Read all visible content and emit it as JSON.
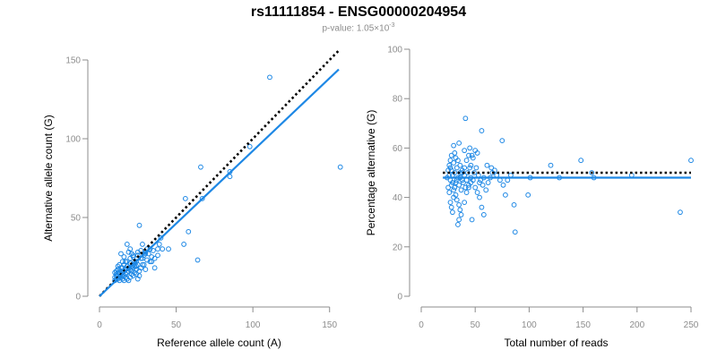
{
  "header": {
    "title": "rs11111854 - ENSG00000204954",
    "pvalue_text": "p-value: 1.05×10",
    "pvalue_exponent": "-3"
  },
  "colors": {
    "point": "#1e88e5",
    "fit_line": "#1e88e5",
    "reference_line": "#000000",
    "axis": "#8c8c8c"
  },
  "chart_data": [
    {
      "type": "scatter",
      "xlabel": "Reference allele count (A)",
      "ylabel": "Alternative allele count (G)",
      "xlim": [
        0,
        156
      ],
      "ylim": [
        0,
        150
      ],
      "xticks": [
        0,
        50,
        100,
        150
      ],
      "yticks": [
        0,
        50,
        100,
        150
      ],
      "grid": false,
      "lines": [
        {
          "kind": "reference",
          "style": "dotted",
          "x": [
            0,
            156
          ],
          "y": [
            0,
            156
          ]
        },
        {
          "kind": "fit",
          "style": "solid",
          "x": [
            0,
            156
          ],
          "y": [
            0,
            144
          ]
        }
      ],
      "points": [
        [
          111,
          139
        ],
        [
          157,
          82
        ],
        [
          98,
          95
        ],
        [
          85,
          79
        ],
        [
          85,
          76
        ],
        [
          66,
          82
        ],
        [
          67,
          62
        ],
        [
          56,
          62
        ],
        [
          58,
          41
        ],
        [
          64,
          23
        ],
        [
          55,
          33
        ],
        [
          40,
          37
        ],
        [
          39,
          33
        ],
        [
          38,
          30
        ],
        [
          41,
          30
        ],
        [
          35,
          29
        ],
        [
          34,
          22
        ],
        [
          33,
          22
        ],
        [
          36,
          18
        ],
        [
          28,
          33
        ],
        [
          26,
          45
        ],
        [
          30,
          27
        ],
        [
          31,
          23
        ],
        [
          29,
          20
        ],
        [
          27,
          24
        ],
        [
          25,
          28
        ],
        [
          24,
          22
        ],
        [
          23,
          19
        ],
        [
          22,
          25
        ],
        [
          21,
          27
        ],
        [
          20,
          30
        ],
        [
          19,
          28
        ],
        [
          18,
          33
        ],
        [
          17,
          22
        ],
        [
          16,
          25
        ],
        [
          16,
          20
        ],
        [
          15,
          18
        ],
        [
          15,
          22
        ],
        [
          14,
          27
        ],
        [
          14,
          18
        ],
        [
          13,
          20
        ],
        [
          13,
          15
        ],
        [
          12,
          17
        ],
        [
          12,
          19
        ],
        [
          12,
          13
        ],
        [
          11,
          16
        ],
        [
          11,
          14
        ],
        [
          10,
          12
        ],
        [
          10,
          15
        ],
        [
          10,
          10
        ],
        [
          11,
          11
        ],
        [
          12,
          11
        ],
        [
          13,
          12
        ],
        [
          14,
          12
        ],
        [
          15,
          11
        ],
        [
          16,
          13
        ],
        [
          17,
          14
        ],
        [
          18,
          11
        ],
        [
          19,
          10
        ],
        [
          20,
          12
        ],
        [
          21,
          14
        ],
        [
          22,
          13
        ],
        [
          23,
          15
        ],
        [
          24,
          14
        ],
        [
          25,
          11
        ],
        [
          26,
          13
        ],
        [
          17,
          17
        ],
        [
          18,
          19
        ],
        [
          19,
          18
        ],
        [
          20,
          21
        ],
        [
          21,
          19
        ],
        [
          22,
          20
        ],
        [
          23,
          22
        ],
        [
          24,
          17
        ],
        [
          26,
          16
        ],
        [
          27,
          18
        ],
        [
          28,
          20
        ],
        [
          30,
          17
        ],
        [
          11,
          13
        ],
        [
          12,
          15
        ],
        [
          13,
          14
        ],
        [
          14,
          16
        ],
        [
          15,
          15
        ],
        [
          16,
          16
        ],
        [
          17,
          12
        ],
        [
          18,
          15
        ],
        [
          19,
          16
        ],
        [
          20,
          17
        ],
        [
          21,
          16
        ],
        [
          22,
          18
        ],
        [
          24,
          19
        ],
        [
          25,
          20
        ],
        [
          28,
          24
        ],
        [
          29,
          26
        ],
        [
          30,
          28
        ],
        [
          32,
          27
        ],
        [
          33,
          30
        ],
        [
          34,
          25
        ],
        [
          36,
          24
        ],
        [
          38,
          26
        ],
        [
          45,
          30
        ],
        [
          16,
          10
        ],
        [
          13,
          10
        ],
        [
          15,
          13
        ],
        [
          18,
          22
        ],
        [
          20,
          24
        ],
        [
          22,
          26
        ],
        [
          25,
          26
        ],
        [
          27,
          29
        ],
        [
          31,
          30
        ]
      ]
    },
    {
      "type": "scatter",
      "xlabel": "Total number of reads",
      "ylabel": "Percentage alternative (G)",
      "xlim": [
        0,
        250
      ],
      "ylim": [
        0,
        100
      ],
      "xticks": [
        0,
        50,
        100,
        150,
        200,
        250
      ],
      "yticks": [
        0,
        20,
        40,
        60,
        80,
        100
      ],
      "grid": false,
      "lines": [
        {
          "kind": "reference",
          "style": "dotted",
          "x": [
            20,
            250
          ],
          "y": [
            50,
            50
          ]
        },
        {
          "kind": "fit",
          "style": "solid",
          "x": [
            20,
            250
          ],
          "y": [
            48,
            48
          ]
        }
      ],
      "points": [
        [
          41,
          72
        ],
        [
          56,
          67
        ],
        [
          75,
          63
        ],
        [
          61,
          53
        ],
        [
          50,
          59
        ],
        [
          45,
          60
        ],
        [
          47,
          57
        ],
        [
          40,
          59
        ],
        [
          35,
          62
        ],
        [
          30,
          61
        ],
        [
          31,
          58
        ],
        [
          28,
          57
        ],
        [
          27,
          55
        ],
        [
          26,
          53
        ],
        [
          25,
          51
        ],
        [
          26,
          49
        ],
        [
          27,
          47
        ],
        [
          28,
          45
        ],
        [
          30,
          43
        ],
        [
          32,
          41
        ],
        [
          33,
          39
        ],
        [
          35,
          37
        ],
        [
          36,
          35
        ],
        [
          37,
          33
        ],
        [
          35,
          31
        ],
        [
          34,
          29
        ],
        [
          40,
          38
        ],
        [
          42,
          42
        ],
        [
          44,
          44
        ],
        [
          46,
          46
        ],
        [
          48,
          47
        ],
        [
          50,
          44
        ],
        [
          52,
          42
        ],
        [
          54,
          40
        ],
        [
          56,
          36
        ],
        [
          58,
          33
        ],
        [
          47,
          31
        ],
        [
          36,
          48
        ],
        [
          38,
          50
        ],
        [
          33,
          52
        ],
        [
          31,
          50
        ],
        [
          29,
          49
        ],
        [
          28,
          51
        ],
        [
          27,
          52
        ],
        [
          30,
          54
        ],
        [
          32,
          56
        ],
        [
          34,
          55
        ],
        [
          36,
          53
        ],
        [
          38,
          51
        ],
        [
          40,
          49
        ],
        [
          42,
          47
        ],
        [
          44,
          45
        ],
        [
          46,
          48
        ],
        [
          49,
          50
        ],
        [
          51,
          52
        ],
        [
          53,
          49
        ],
        [
          55,
          47
        ],
        [
          57,
          45
        ],
        [
          60,
          43
        ],
        [
          62,
          46
        ],
        [
          64,
          48
        ],
        [
          66,
          50
        ],
        [
          68,
          51
        ],
        [
          70,
          49
        ],
        [
          73,
          47
        ],
        [
          76,
          45
        ],
        [
          78,
          41
        ],
        [
          80,
          47
        ],
        [
          83,
          49
        ],
        [
          86,
          37
        ],
        [
          87,
          26
        ],
        [
          99,
          41
        ],
        [
          101,
          48
        ],
        [
          120,
          53
        ],
        [
          128,
          48
        ],
        [
          148,
          55
        ],
        [
          158,
          50
        ],
        [
          160,
          48
        ],
        [
          195,
          49
        ],
        [
          240,
          34
        ],
        [
          250,
          55
        ],
        [
          29,
          46
        ],
        [
          31,
          44
        ],
        [
          33,
          47
        ],
        [
          35,
          45
        ],
        [
          37,
          43
        ],
        [
          39,
          46
        ],
        [
          41,
          44
        ],
        [
          43,
          50
        ],
        [
          45,
          52
        ],
        [
          24,
          48
        ],
        [
          25,
          44
        ],
        [
          26,
          42
        ],
        [
          27,
          38
        ],
        [
          28,
          36
        ],
        [
          29,
          34
        ],
        [
          30,
          40
        ],
        [
          32,
          46
        ],
        [
          34,
          48
        ],
        [
          36,
          50
        ],
        [
          38,
          47
        ],
        [
          40,
          52
        ],
        [
          42,
          55
        ],
        [
          44,
          57
        ],
        [
          46,
          53
        ],
        [
          48,
          56
        ],
        [
          52,
          58
        ],
        [
          54,
          46
        ],
        [
          58,
          48
        ],
        [
          65,
          52
        ]
      ]
    }
  ]
}
